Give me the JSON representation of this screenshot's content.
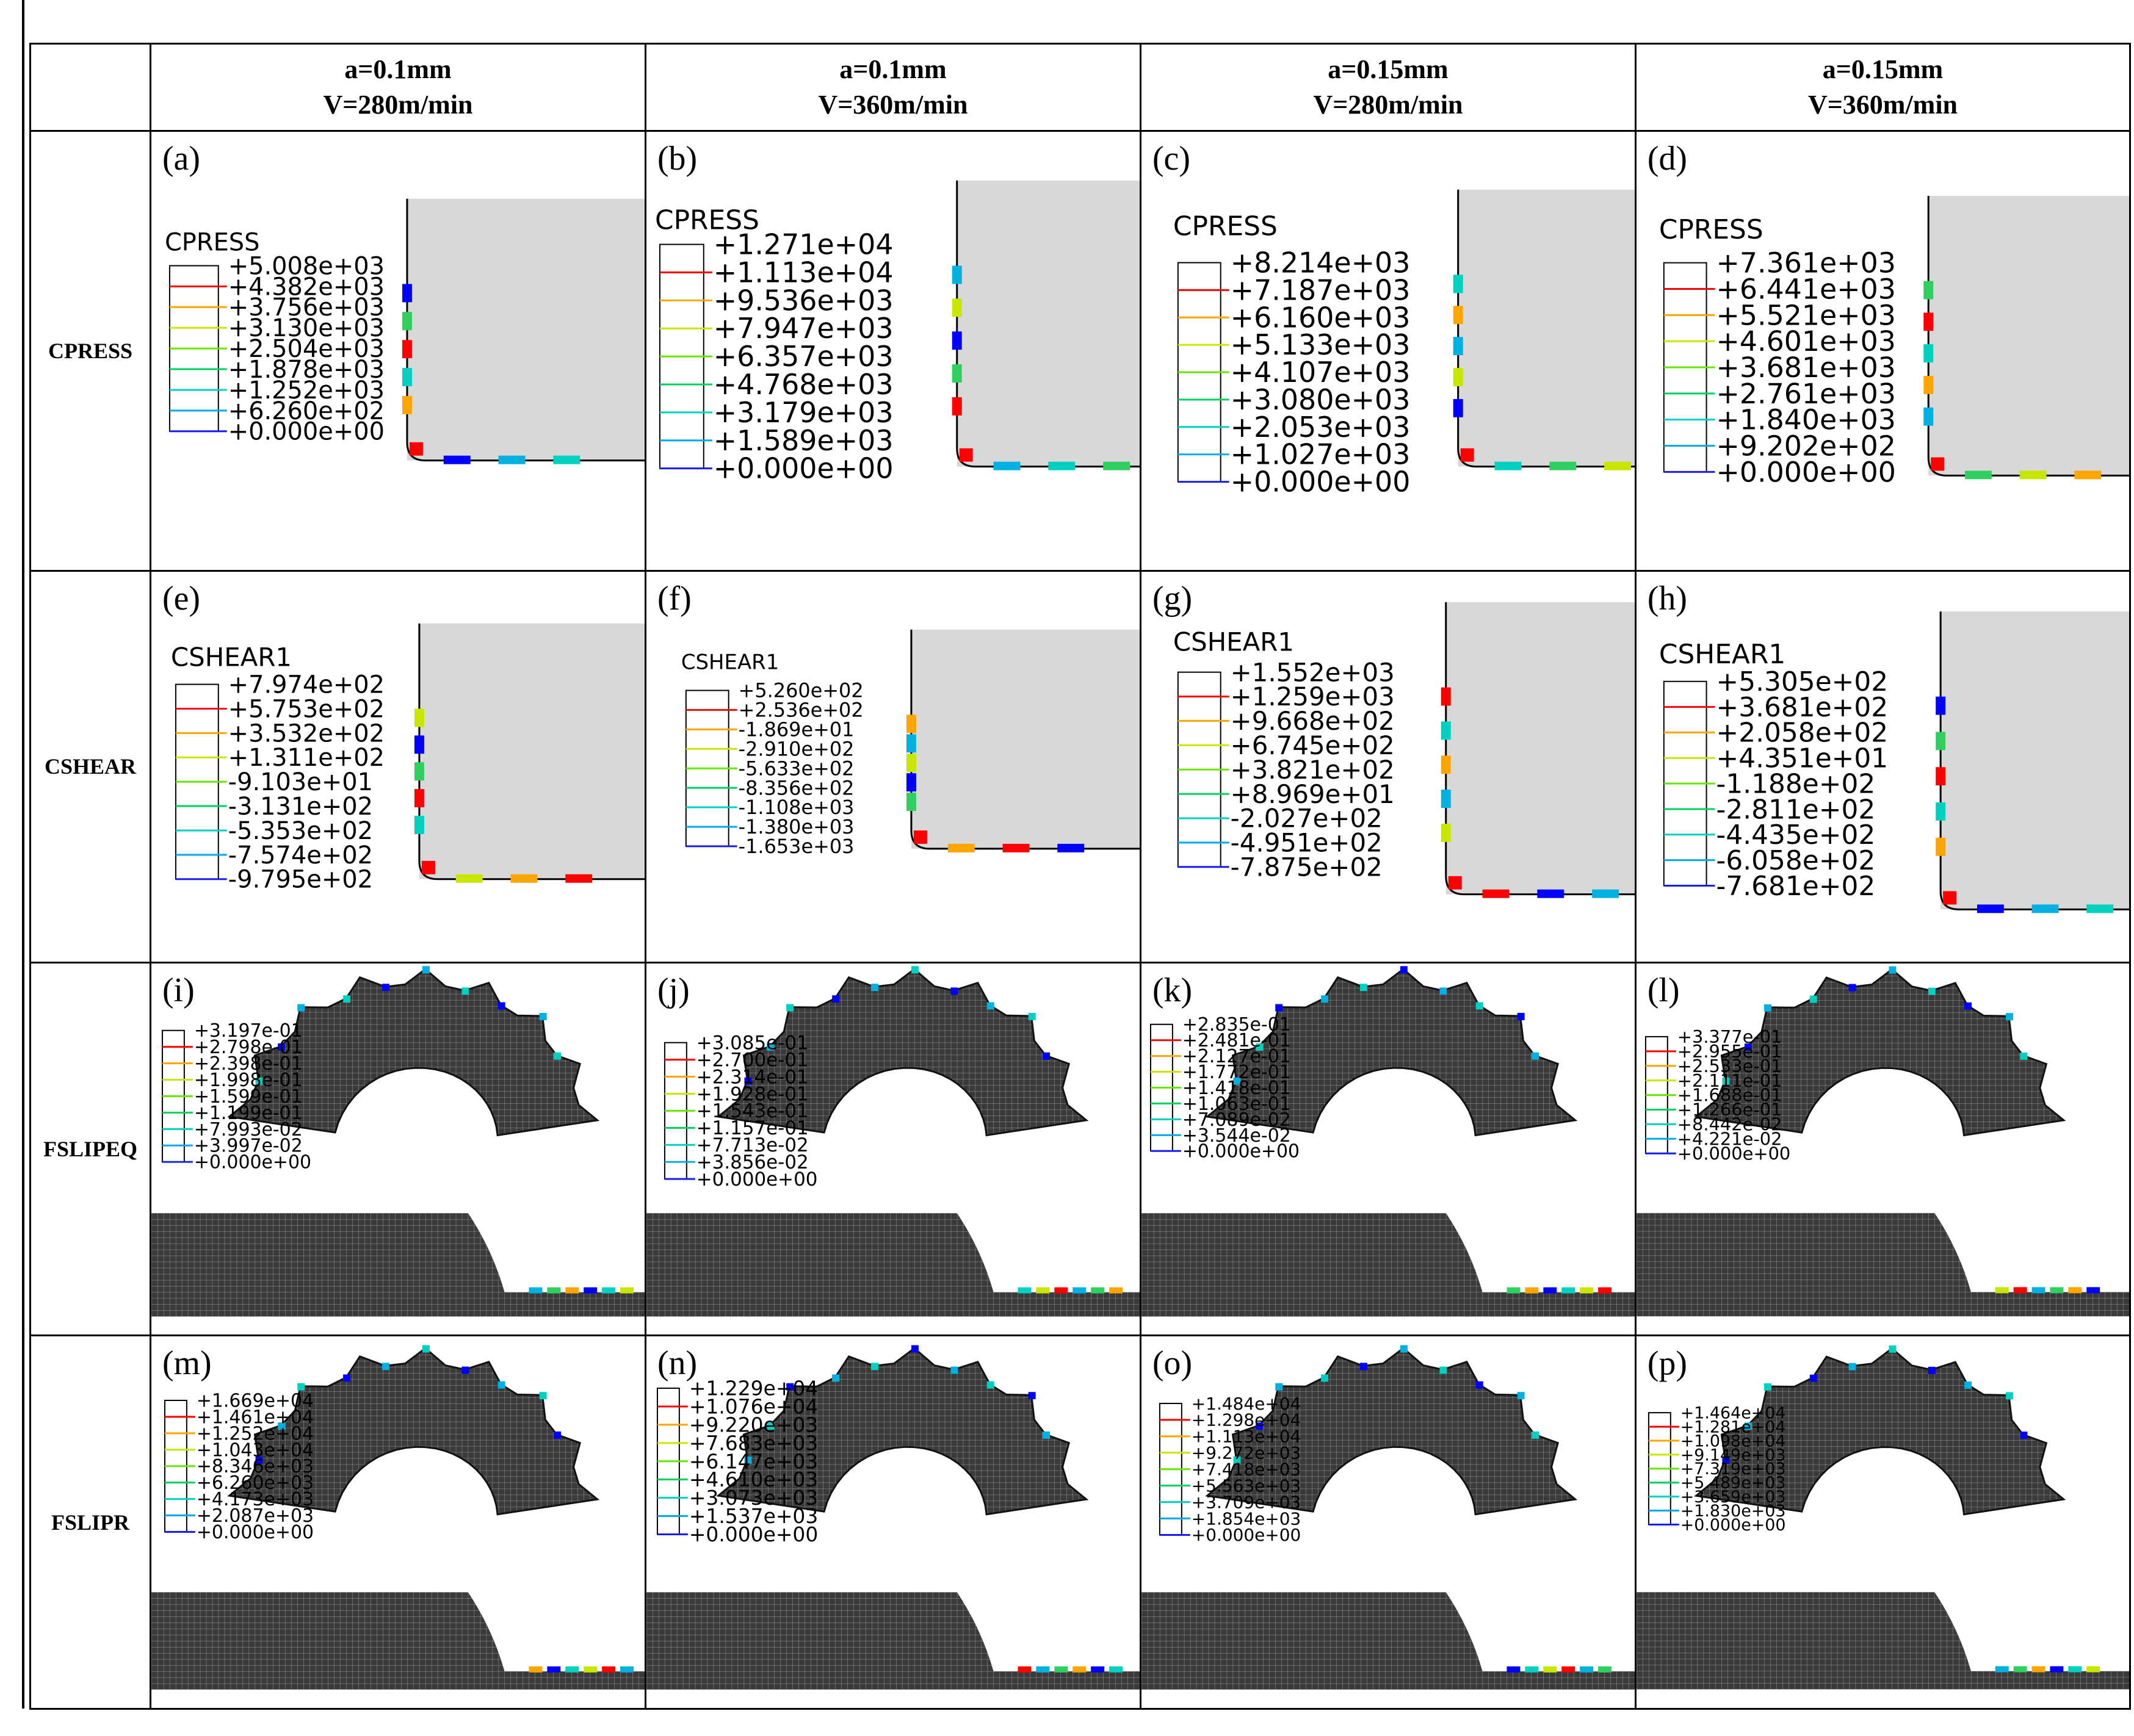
{
  "columns": [
    {
      "a": "a=0.1mm",
      "v": "V=280m/min"
    },
    {
      "a": "a=0.1mm",
      "v": "V=360m/min"
    },
    {
      "a": "a=0.15mm",
      "v": "V=280m/min"
    },
    {
      "a": "a=0.15mm",
      "v": "V=360m/min"
    }
  ],
  "rows": [
    "CPRESS",
    "CSHEAR",
    "FSLIPEQ",
    "FSLIPR"
  ],
  "legend_colors": [
    "#ff0000",
    "#ffa500",
    "#c8e600",
    "#66e600",
    "#00d060",
    "#00d0c0",
    "#00a8e8",
    "#1a1aff"
  ],
  "panels": [
    {
      "label": "(a)",
      "caption": "CPRESS",
      "values": [
        "+5.008e+03",
        "+4.382e+03",
        "+3.756e+03",
        "+3.130e+03",
        "+2.504e+03",
        "+1.878e+03",
        "+1.252e+03",
        "+6.260e+02",
        "+0.000e+00"
      ]
    },
    {
      "label": "(b)",
      "caption": "CPRESS",
      "values": [
        "+1.271e+04",
        "+1.113e+04",
        "+9.536e+03",
        "+7.947e+03",
        "+6.357e+03",
        "+4.768e+03",
        "+3.179e+03",
        "+1.589e+03",
        "+0.000e+00"
      ]
    },
    {
      "label": "(c)",
      "caption": "CPRESS",
      "values": [
        "+8.214e+03",
        "+7.187e+03",
        "+6.160e+03",
        "+5.133e+03",
        "+4.107e+03",
        "+3.080e+03",
        "+2.053e+03",
        "+1.027e+03",
        "+0.000e+00"
      ]
    },
    {
      "label": "(d)",
      "caption": "CPRESS",
      "values": [
        "+7.361e+03",
        "+6.441e+03",
        "+5.521e+03",
        "+4.601e+03",
        "+3.681e+03",
        "+2.761e+03",
        "+1.840e+03",
        "+9.202e+02",
        "+0.000e+00"
      ]
    },
    {
      "label": "(e)",
      "caption": "CSHEAR1",
      "values": [
        "+7.974e+02",
        "+5.753e+02",
        "+3.532e+02",
        "+1.311e+02",
        "-9.103e+01",
        "-3.131e+02",
        "-5.353e+02",
        "-7.574e+02",
        "-9.795e+02"
      ]
    },
    {
      "label": "(f)",
      "caption": "CSHEAR1",
      "values": [
        "+5.260e+02",
        "+2.536e+02",
        "-1.869e+01",
        "-2.910e+02",
        "-5.633e+02",
        "-8.356e+02",
        "-1.108e+03",
        "-1.380e+03",
        "-1.653e+03"
      ]
    },
    {
      "label": "(g)",
      "caption": "CSHEAR1",
      "values": [
        "+1.552e+03",
        "+1.259e+03",
        "+9.668e+02",
        "+6.745e+02",
        "+3.821e+02",
        "+8.969e+01",
        "-2.027e+02",
        "-4.951e+02",
        "-7.875e+02"
      ]
    },
    {
      "label": "(h)",
      "caption": "CSHEAR1",
      "values": [
        "+5.305e+02",
        "+3.681e+02",
        "+2.058e+02",
        "+4.351e+01",
        "-1.188e+02",
        "-2.811e+02",
        "-4.435e+02",
        "-6.058e+02",
        "-7.681e+02"
      ]
    },
    {
      "label": "(i)",
      "caption": "",
      "values": [
        "+3.197e-01",
        "+2.798e-01",
        "+2.398e-01",
        "+1.998e-01",
        "+1.599e-01",
        "+1.199e-01",
        "+7.993e-02",
        "+3.997e-02",
        "+0.000e+00"
      ]
    },
    {
      "label": "(j)",
      "caption": "",
      "values": [
        "+3.085e-01",
        "+2.700e-01",
        "+2.314e-01",
        "+1.928e-01",
        "+1.543e-01",
        "+1.157e-01",
        "+7.713e-02",
        "+3.856e-02",
        "+0.000e+00"
      ]
    },
    {
      "label": "(k)",
      "caption": "",
      "values": [
        "+2.835e-01",
        "+2.481e-01",
        "+2.127e-01",
        "+1.772e-01",
        "+1.418e-01",
        "+1.063e-01",
        "+7.089e-02",
        "+3.544e-02",
        "+0.000e+00"
      ]
    },
    {
      "label": "(l)",
      "caption": "",
      "values": [
        "+3.377e-01",
        "+2.955e-01",
        "+2.533e-01",
        "+2.111e-01",
        "+1.688e-01",
        "+1.266e-01",
        "+8.442e-02",
        "+4.221e-02",
        "+0.000e+00"
      ]
    },
    {
      "label": "(m)",
      "caption": "",
      "values": [
        "+1.669e+04",
        "+1.461e+04",
        "+1.252e+04",
        "+1.043e+04",
        "+8.346e+03",
        "+6.260e+03",
        "+4.173e+03",
        "+2.087e+03",
        "+0.000e+00"
      ]
    },
    {
      "label": "(n)",
      "caption": "",
      "values": [
        "+1.229e+04",
        "+1.076e+04",
        "+9.220e+03",
        "+7.683e+03",
        "+6.147e+03",
        "+4.610e+03",
        "+3.073e+03",
        "+1.537e+03",
        "+0.000e+00"
      ]
    },
    {
      "label": "(o)",
      "caption": "",
      "values": [
        "+1.484e+04",
        "+1.298e+04",
        "+1.113e+04",
        "+9.272e+03",
        "+7.418e+03",
        "+5.563e+03",
        "+3.709e+03",
        "+1.854e+03",
        "+0.000e+00"
      ]
    },
    {
      "label": "(p)",
      "caption": "",
      "values": [
        "+1.464e+04",
        "+1.281e+04",
        "+1.098e+04",
        "+9.149e+03",
        "+7.319e+03",
        "+5.489e+03",
        "+3.659e+03",
        "+1.830e+03",
        "+0.000e+00"
      ]
    }
  ]
}
